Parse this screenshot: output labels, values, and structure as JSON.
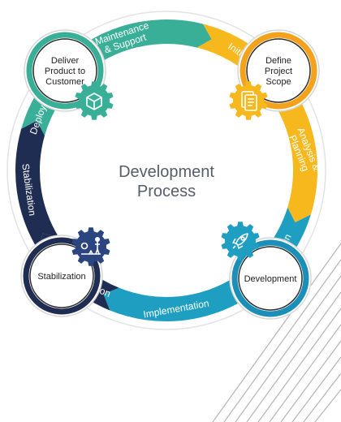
{
  "diagram": {
    "title_lines": [
      "Development",
      "Process"
    ],
    "segments": [
      {
        "name": "maintenance",
        "label_lines": [
          "Maintenance",
          "& Support"
        ],
        "color": "#3aaf97"
      },
      {
        "name": "initiation",
        "label_lines": [
          "Initiation"
        ],
        "color": "#f6b81c"
      },
      {
        "name": "analysis",
        "label_lines": [
          "Analysis &",
          "Planning"
        ],
        "color": "#f6b81c"
      },
      {
        "name": "design",
        "label_lines": [
          "Design"
        ],
        "color": "#1e9fc2"
      },
      {
        "name": "implementation",
        "label_lines": [
          "Implementation"
        ],
        "color": "#1e9fc2"
      },
      {
        "name": "integration",
        "label_lines": [
          "Integration"
        ],
        "color": "#1f2d52"
      },
      {
        "name": "stabilization",
        "label_lines": [
          "Stabilization"
        ],
        "color": "#1f2d52"
      },
      {
        "name": "deployment",
        "label_lines": [
          "Deployment"
        ],
        "color": "#3aaf97"
      }
    ],
    "hubs": [
      {
        "name": "deliver",
        "lines": [
          "Deliver",
          "Product to",
          "Customer"
        ],
        "ring_color": "#3aaf97",
        "gear_color": "#3aaf97",
        "icon": "box-icon"
      },
      {
        "name": "define",
        "lines": [
          "Define",
          "Project",
          "Scope"
        ],
        "ring_color": "#f3a21b",
        "gear_color": "#f6b81c",
        "icon": "document-icon"
      },
      {
        "name": "development",
        "lines": [
          "Development"
        ],
        "ring_color": "#1b8fb8",
        "gear_color": "#1e9fc2",
        "icon": "rocket-icon"
      },
      {
        "name": "stabilization",
        "lines": [
          "Stabilization"
        ],
        "ring_color": "#1f2d52",
        "gear_color": "#2b4580",
        "icon": "balance-icon"
      }
    ]
  }
}
